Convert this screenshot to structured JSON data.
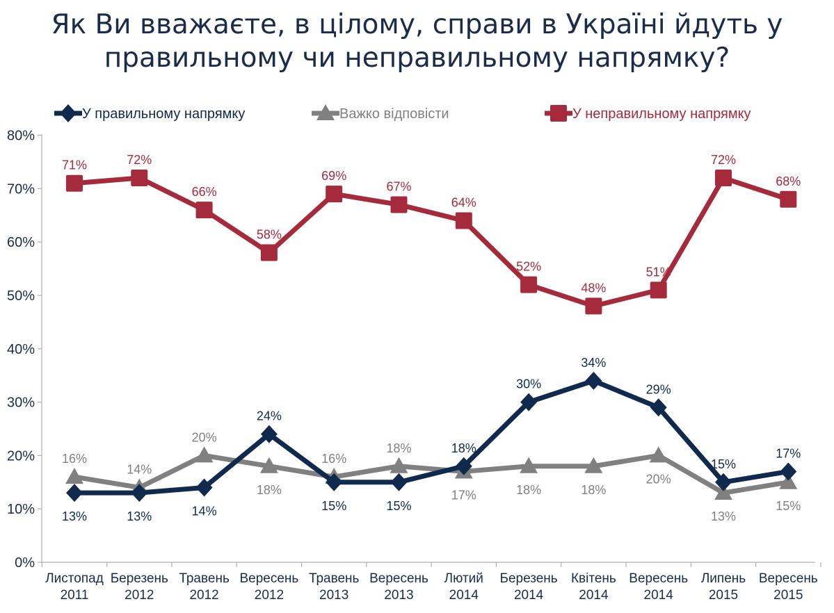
{
  "title_lines": [
    "Як Ви вважаєте, в цілому, справи в Україні йдуть у",
    "правильному чи неправильному напрямку?"
  ],
  "chart_data": {
    "type": "line",
    "title": "Як Ви вважаєте, в цілому, справи в Україні йдуть у правильному чи неправильному напрямку?",
    "categories": [
      [
        "Листопад",
        "2011"
      ],
      [
        "Березень",
        "2012"
      ],
      [
        "Травень",
        "2012"
      ],
      [
        "Вересень",
        "2012"
      ],
      [
        "Травень",
        "2013"
      ],
      [
        "Вересень",
        "2013"
      ],
      [
        "Лютий",
        "2014"
      ],
      [
        "Березень",
        "2014"
      ],
      [
        "Квітень",
        "2014"
      ],
      [
        "Вересень",
        "2014"
      ],
      [
        "Липень",
        "2015"
      ],
      [
        "Вересень",
        "2015"
      ]
    ],
    "y_ticks": [
      "0%",
      "10%",
      "20%",
      "30%",
      "40%",
      "50%",
      "60%",
      "70%",
      "80%"
    ],
    "ylim": [
      0,
      80
    ],
    "grid": false,
    "legend_position": "top",
    "series": [
      {
        "name": "У правильному напрямку",
        "color": "#0f2a4d",
        "marker": "diamond",
        "values": [
          13,
          13,
          14,
          24,
          15,
          15,
          18,
          30,
          34,
          29,
          15,
          17
        ],
        "labels": [
          "13%",
          "13%",
          "14%",
          "24%",
          "15%",
          "15%",
          "18%",
          "30%",
          "34%",
          "29%",
          "15%",
          "17%"
        ]
      },
      {
        "name": "Важко відповісти",
        "color": "#808080",
        "marker": "triangle",
        "values": [
          16,
          14,
          20,
          18,
          16,
          18,
          17,
          18,
          18,
          20,
          13,
          15
        ],
        "labels": [
          "16%",
          "14%",
          "20%",
          "18%",
          "16%",
          "18%",
          "17%",
          "18%",
          "18%",
          "20%",
          "13%",
          "15%"
        ]
      },
      {
        "name": "У неправильному напрямку",
        "color": "#a52a3c",
        "marker": "square",
        "values": [
          71,
          72,
          66,
          58,
          69,
          67,
          64,
          52,
          48,
          51,
          72,
          68
        ],
        "labels": [
          "71%",
          "72%",
          "66%",
          "58%",
          "69%",
          "67%",
          "64%",
          "52%",
          "48%",
          "51%",
          "72%",
          "68%"
        ]
      }
    ]
  }
}
